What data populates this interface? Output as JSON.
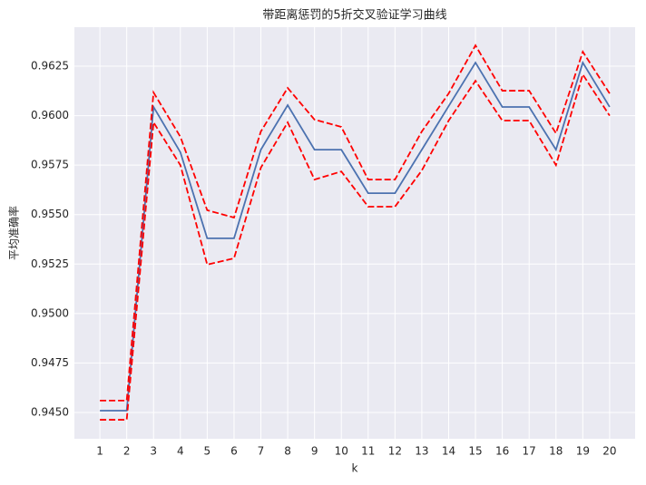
{
  "chart_data": {
    "type": "line",
    "title": "带距离惩罚的5折交叉验证学习曲线",
    "x_label": "k",
    "y_label": "平均准确率",
    "x": [
      1,
      2,
      3,
      4,
      5,
      6,
      7,
      8,
      9,
      10,
      11,
      12,
      13,
      14,
      15,
      16,
      17,
      18,
      19,
      20
    ],
    "series": [
      {
        "color": "#4c72b0",
        "linestyle": "solid",
        "values": [
          0.94509,
          0.94509,
          0.96044,
          0.95815,
          0.9538,
          0.9538,
          0.95828,
          0.96053,
          0.95828,
          0.95828,
          0.95608,
          0.95608,
          0.95828,
          0.96048,
          0.96268,
          0.96044,
          0.96044,
          0.95828,
          0.96268,
          0.96044
        ]
      },
      {
        "color": "#ff0000",
        "linestyle": "dashed",
        "values": [
          0.9456,
          0.9456,
          0.96117,
          0.95893,
          0.95522,
          0.95485,
          0.9592,
          0.9614,
          0.9598,
          0.95943,
          0.95677,
          0.95677,
          0.9592,
          0.96112,
          0.96355,
          0.96126,
          0.96126,
          0.95911,
          0.96323,
          0.96112
        ]
      },
      {
        "color": "#ff0000",
        "linestyle": "dashed",
        "values": [
          0.94463,
          0.94463,
          0.95966,
          0.9575,
          0.95247,
          0.95279,
          0.95737,
          0.95966,
          0.95677,
          0.95718,
          0.9554,
          0.9554,
          0.95723,
          0.95975,
          0.96176,
          0.95975,
          0.95975,
          0.9575,
          0.96208,
          0.96
        ]
      }
    ],
    "xlim": [
      0.05,
      20.95
    ],
    "ylim": [
      0.94367,
      0.96447
    ],
    "xticks": [
      1,
      2,
      3,
      4,
      5,
      6,
      7,
      8,
      9,
      10,
      11,
      12,
      13,
      14,
      15,
      16,
      17,
      18,
      19,
      20
    ],
    "yticks": [
      {
        "value": 0.945,
        "label": "0.9450"
      },
      {
        "value": 0.9475,
        "label": "0.9475"
      },
      {
        "value": 0.95,
        "label": "0.9500"
      },
      {
        "value": 0.9525,
        "label": "0.9525"
      },
      {
        "value": 0.955,
        "label": "0.9550"
      },
      {
        "value": 0.9575,
        "label": "0.9575"
      },
      {
        "value": 0.96,
        "label": "0.9600"
      },
      {
        "value": 0.9625,
        "label": "0.9625"
      }
    ],
    "grid": true,
    "background": "#eaeaf2"
  }
}
